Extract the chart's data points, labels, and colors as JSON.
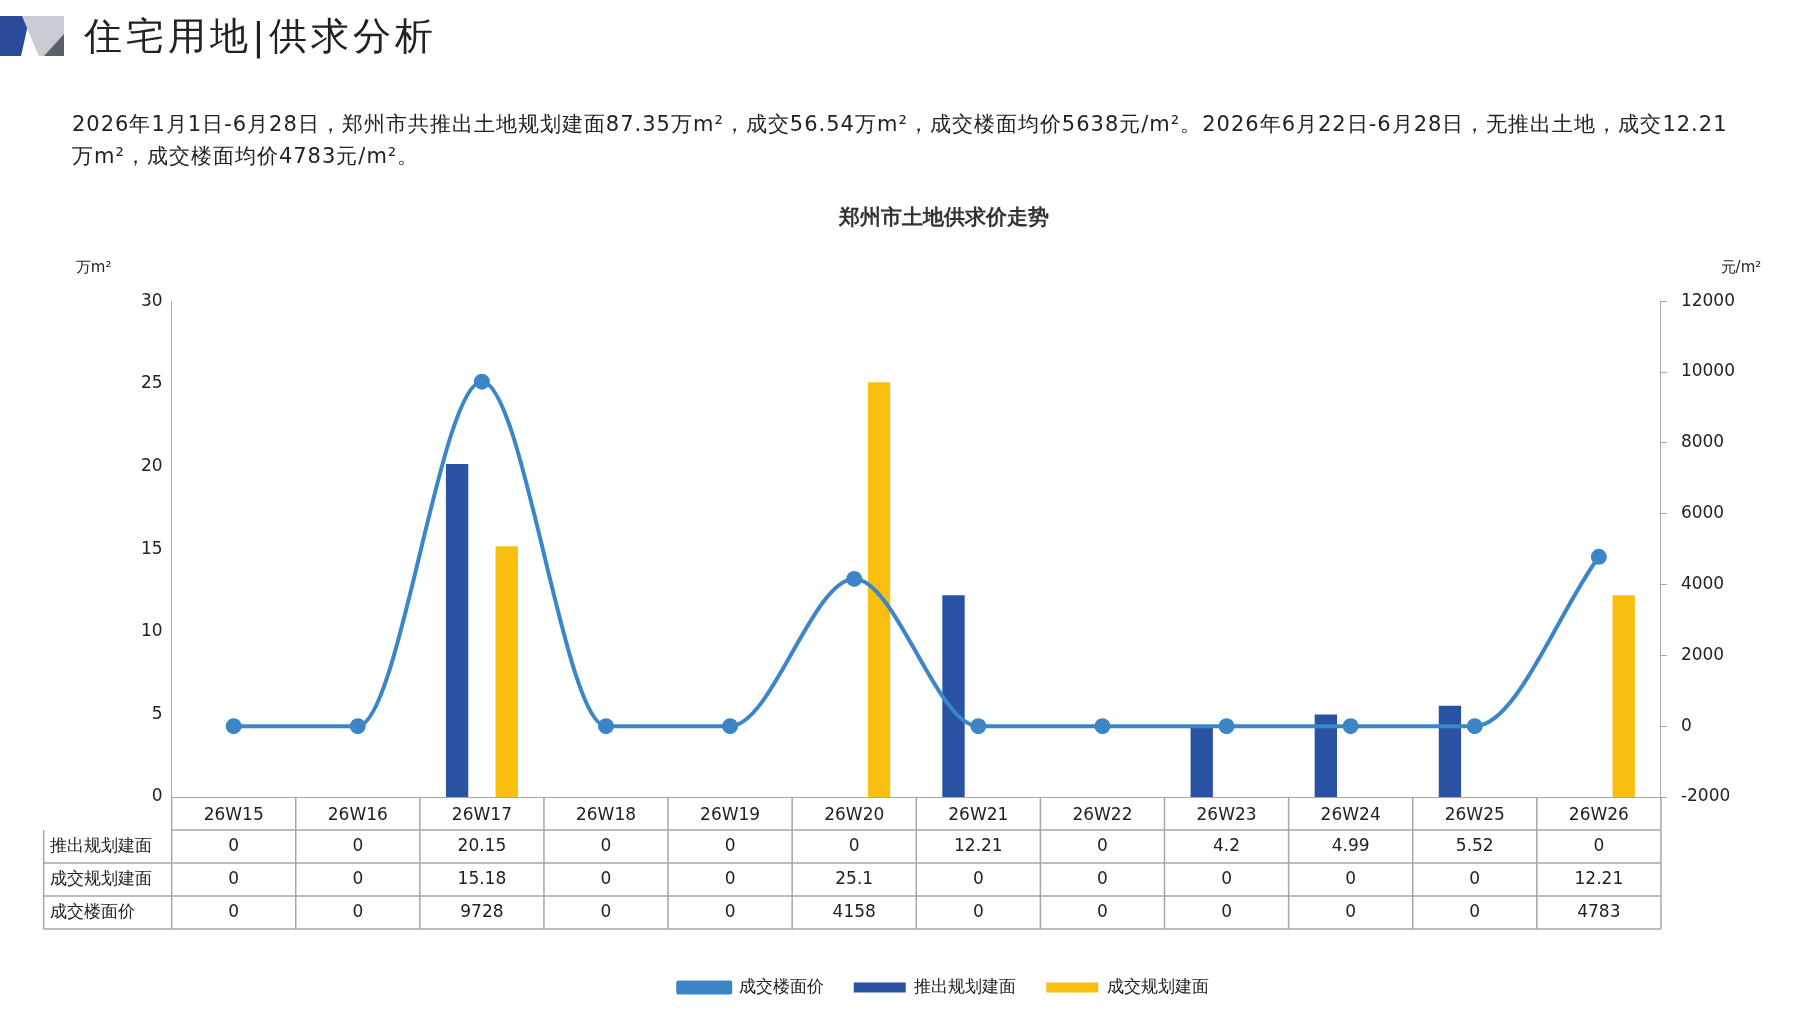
{
  "chart_data": {
    "type": "bar",
    "title": "郑州市土地供求价走势",
    "annotations": [
      "住宅用地|供求分析",
      "2026年1月1日-6月28日，郑州市共推出土地规划建面87.35万m²，成交56.54万m²，成交楼面均价5638元/m²。2026年6月22日-6月28日，无推出土地，成交12.21万m²，成交楼面均价4783元/m²。"
    ],
    "ylabel": "万m²",
    "y2label": "元/m²",
    "categories": [
      "26W15",
      "26W16",
      "26W17",
      "26W18",
      "26W19",
      "26W20",
      "26W21",
      "26W22",
      "26W23",
      "26W24",
      "26W25",
      "26W26"
    ],
    "series": [
      {
        "name": "推出规划建面",
        "color": "#2a52a3",
        "values": [
          0,
          0,
          20.15,
          0,
          0,
          0,
          12.21,
          0,
          4.2,
          4.99,
          5.52,
          0
        ]
      },
      {
        "name": "成交规划建面",
        "color": "#f8bf0f",
        "values": [
          0,
          0,
          15.18,
          0,
          0,
          25.1,
          0,
          0,
          0,
          0,
          0,
          12.21
        ]
      },
      {
        "name": "成交楼面价",
        "type": "line",
        "axis": "y2",
        "color": "#3c86c8",
        "values": [
          0,
          0,
          9728,
          0,
          0,
          4158,
          0,
          0,
          0,
          0,
          0,
          4783
        ]
      }
    ],
    "ylim": [
      0,
      30
    ],
    "yticks": [
      0,
      5,
      10,
      15,
      20,
      25,
      30
    ],
    "y2lim": [
      -2000,
      12000
    ],
    "y2ticks": [
      -2000,
      0,
      2000,
      4000,
      6000,
      8000,
      10000,
      12000
    ],
    "grid": false,
    "legend": "bottom",
    "marker": "circle",
    "line_style": "solid",
    "data_labels": true
  }
}
